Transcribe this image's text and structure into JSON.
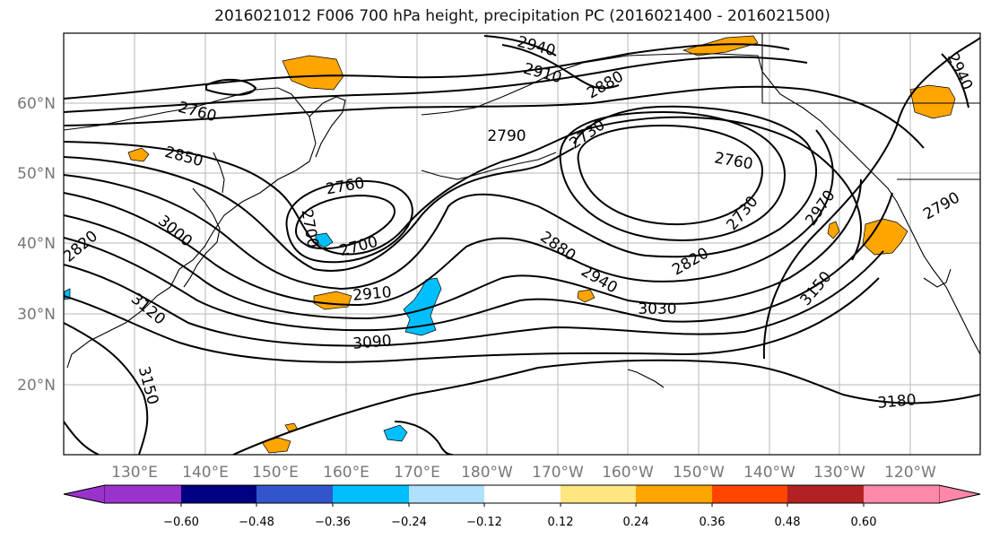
{
  "title": "2016021012 F006 700 hPa height, precipitation PC (2016021400 - 2016021500)",
  "lat_labels": [
    "60°N",
    "50°N",
    "40°N",
    "30°N",
    "20°N"
  ],
  "lon_labels": [
    "130°E",
    "140°E",
    "150°E",
    "160°E",
    "170°E",
    "180°W",
    "170°W",
    "160°W",
    "150°W",
    "140°W",
    "130°W",
    "120°W"
  ],
  "contour_labels": [
    "2940",
    "2910",
    "2880",
    "2760",
    "2850",
    "3000",
    "3120",
    "3150",
    "2790",
    "2730",
    "2700",
    "2760",
    "2760",
    "2700",
    "2730",
    "2880",
    "2940",
    "2910",
    "3030",
    "3090",
    "2820",
    "2970",
    "3150",
    "3180",
    "2940",
    "2820",
    "2790"
  ],
  "colorbar": {
    "colors": [
      "#9933cc",
      "#000080",
      "#3355cc",
      "#00bfff",
      "#b0e0ff",
      "#ffffff",
      "#ffe680",
      "#ffa500",
      "#ff4500",
      "#b22222",
      "#ff88aa"
    ],
    "tick_labels": [
      "−0.60",
      "−0.48",
      "−0.36",
      "−0.24",
      "−0.12",
      "0.12",
      "0.24",
      "0.36",
      "0.48",
      "0.60"
    ]
  },
  "colors": {
    "positive_precip": "#ffa500",
    "negative_precip": "#00bfff",
    "contour": "#000000",
    "grid": "#888888"
  }
}
